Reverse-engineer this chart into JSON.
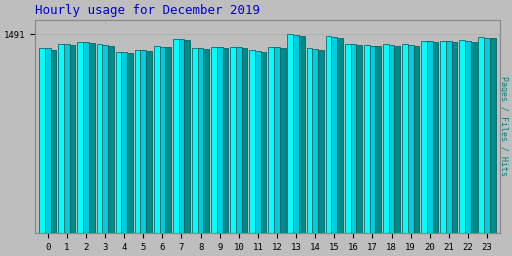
{
  "title": "Hourly usage for December 2019",
  "title_color": "#0000cc",
  "title_fontsize": 9,
  "ylabel_right": "Pages / Files / Hits",
  "ylabel_color": "#008080",
  "background_color": "#bebebe",
  "hours": [
    0,
    1,
    2,
    3,
    4,
    5,
    6,
    7,
    8,
    9,
    10,
    11,
    12,
    13,
    14,
    15,
    16,
    17,
    18,
    19,
    20,
    21,
    22,
    23
  ],
  "pages": [
    1390,
    1420,
    1435,
    1415,
    1360,
    1375,
    1400,
    1455,
    1390,
    1395,
    1395,
    1370,
    1395,
    1491,
    1390,
    1475,
    1420,
    1410,
    1415,
    1415,
    1440,
    1440,
    1445,
    1470
  ],
  "files": [
    1385,
    1418,
    1432,
    1412,
    1355,
    1372,
    1398,
    1452,
    1387,
    1392,
    1392,
    1367,
    1392,
    1483,
    1382,
    1468,
    1416,
    1406,
    1412,
    1412,
    1437,
    1437,
    1438,
    1466
  ],
  "hits": [
    1375,
    1412,
    1428,
    1406,
    1348,
    1366,
    1392,
    1447,
    1381,
    1386,
    1386,
    1361,
    1386,
    1476,
    1372,
    1463,
    1411,
    1401,
    1406,
    1406,
    1432,
    1432,
    1430,
    1461
  ],
  "bar_color_pages": "#00ffff",
  "bar_color_files": "#00ccdd",
  "bar_color_hits": "#008b8b",
  "bar_edge": "#005555",
  "ytick_value": 1491,
  "ytick_label": "1491",
  "ylim_min": 0,
  "ylim_max": 1600,
  "bar_width": 0.3,
  "figsize": [
    5.12,
    2.56
  ],
  "dpi": 100
}
